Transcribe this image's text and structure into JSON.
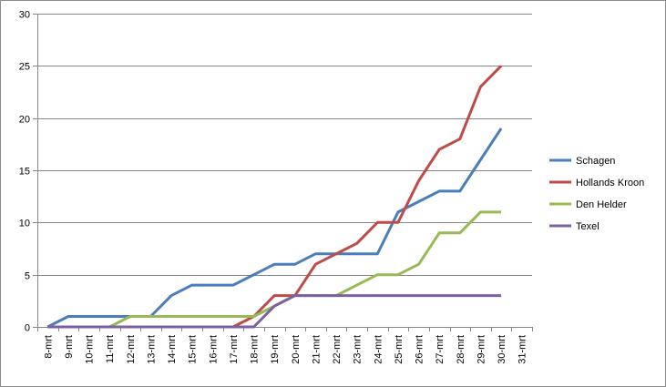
{
  "chart_data": {
    "type": "line",
    "title": "",
    "xlabel": "",
    "ylabel": "",
    "ylim": [
      0,
      30
    ],
    "yticks": [
      0,
      5,
      10,
      15,
      20,
      25,
      30
    ],
    "grid": "horizontal",
    "legend": "right",
    "categories": [
      "8-mrt",
      "9-mrt",
      "10-mrt",
      "11-mrt",
      "12-mrt",
      "13-mrt",
      "14-mrt",
      "15-mrt",
      "16-mrt",
      "17-mrt",
      "18-mrt",
      "19-mrt",
      "20-mrt",
      "21-mrt",
      "22-mrt",
      "23-mrt",
      "24-mrt",
      "25-mrt",
      "26-mrt",
      "27-mrt",
      "28-mrt",
      "29-mrt",
      "30-mrt",
      "31-mrt"
    ],
    "series": [
      {
        "name": "Schagen",
        "color": "#4a7ebb",
        "values": [
          0,
          1,
          1,
          1,
          1,
          1,
          3,
          4,
          4,
          4,
          5,
          6,
          6,
          7,
          7,
          7,
          7,
          11,
          12,
          13,
          13,
          16,
          19,
          null
        ]
      },
      {
        "name": "Hollands Kroon",
        "color": "#be4b48",
        "values": [
          0,
          0,
          0,
          0,
          0,
          0,
          0,
          0,
          0,
          0,
          1,
          3,
          3,
          6,
          7,
          8,
          10,
          10,
          14,
          17,
          18,
          23,
          25,
          null
        ]
      },
      {
        "name": "Den Helder",
        "color": "#98b954",
        "values": [
          0,
          0,
          0,
          0,
          1,
          1,
          1,
          1,
          1,
          1,
          1,
          2,
          3,
          3,
          3,
          4,
          5,
          5,
          6,
          9,
          9,
          11,
          11,
          null
        ]
      },
      {
        "name": "Texel",
        "color": "#7d60a0",
        "values": [
          0,
          0,
          0,
          0,
          0,
          0,
          0,
          0,
          0,
          0,
          0,
          2,
          3,
          3,
          3,
          3,
          3,
          3,
          3,
          3,
          3,
          3,
          3,
          null
        ]
      }
    ]
  }
}
